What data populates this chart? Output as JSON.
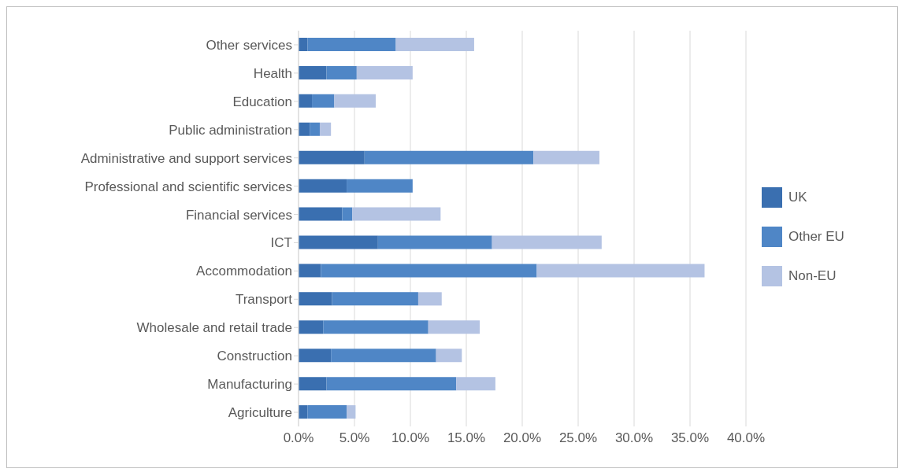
{
  "chart_data": {
    "type": "bar",
    "orientation": "horizontal",
    "stacked": true,
    "categories": [
      "Other services",
      "Health",
      "Education",
      "Public administration",
      "Administrative and support services",
      "Professional and scientific services",
      "Financial services",
      "ICT",
      "Accommodation",
      "Transport",
      "Wholesale and retail trade",
      "Construction",
      "Manufacturing",
      "Agriculture"
    ],
    "series": [
      {
        "name": "UK",
        "color": "#3a6fb0",
        "values": [
          0.8,
          2.5,
          1.2,
          1.0,
          5.9,
          4.3,
          3.9,
          7.1,
          2.0,
          3.0,
          2.2,
          2.9,
          2.5,
          0.8
        ]
      },
      {
        "name": "Other EU",
        "color": "#4f86c6",
        "values": [
          7.9,
          2.7,
          2.0,
          0.9,
          15.1,
          5.9,
          0.9,
          10.2,
          19.3,
          7.7,
          9.4,
          9.4,
          11.6,
          3.5
        ]
      },
      {
        "name": "Non-EU",
        "color": "#b4c3e3",
        "values": [
          7.0,
          5.0,
          3.7,
          1.0,
          5.9,
          0,
          7.9,
          9.8,
          15.0,
          2.1,
          4.6,
          2.3,
          3.5,
          0.8
        ]
      }
    ],
    "xlim": [
      0,
      40
    ],
    "xticks": [
      {
        "value": 0,
        "label": "0.0%"
      },
      {
        "value": 5,
        "label": "5.0%"
      },
      {
        "value": 10,
        "label": "10.0%"
      },
      {
        "value": 15,
        "label": "15.0%"
      },
      {
        "value": 20,
        "label": "20.0%"
      },
      {
        "value": 25,
        "label": "25.0%"
      },
      {
        "value": 30,
        "label": "30.0%"
      },
      {
        "value": 35,
        "label": "35.0%"
      },
      {
        "value": 40,
        "label": "40.0%"
      }
    ],
    "grid": "x",
    "legend": "right"
  }
}
